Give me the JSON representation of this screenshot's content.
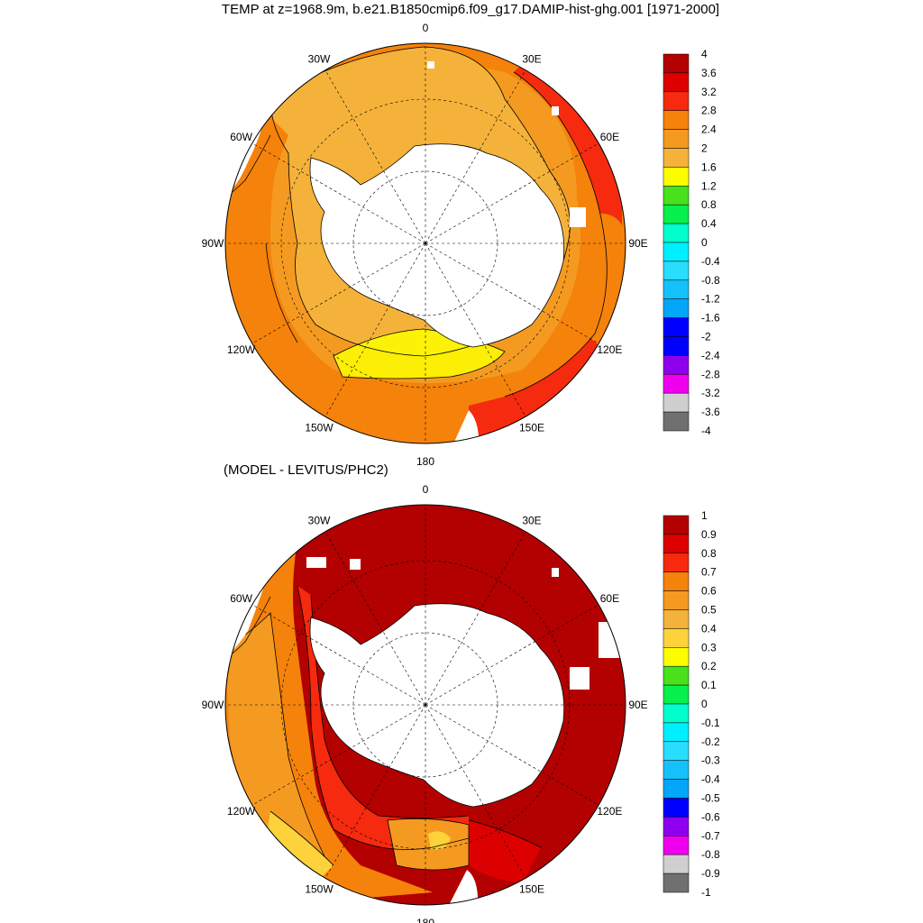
{
  "title": "TEMP at z=1968.9m, b.e21.B1850cmip6.f09_g17.DAMIP-hist-ghg.001 [1971-2000]",
  "subtitle": "(MODEL - LEVITUS/PHC2)",
  "longitude_labels": [
    "0",
    "30E",
    "60E",
    "90E",
    "120E",
    "150E",
    "180",
    "150W",
    "120W",
    "90W",
    "60W",
    "30W"
  ],
  "colors": {
    "land": "#ffffff",
    "coast": "#000000"
  },
  "panels": [
    {
      "name": "model-temperature",
      "colorbar": {
        "labels": [
          "4",
          "3.6",
          "3.2",
          "2.8",
          "2.4",
          "2",
          "1.6",
          "1.2",
          "0.8",
          "0.4",
          "0",
          "-0.4",
          "-0.8",
          "-1.2",
          "-1.6",
          "-2",
          "-2.4",
          "-2.8",
          "-3.2",
          "-3.6",
          "-4"
        ],
        "colors": [
          "#b30000",
          "#dd0000",
          "#f52a0e",
          "#f5820a",
          "#f59a20",
          "#f5b23a",
          "#fdfd00",
          "#49e01c",
          "#07f04e",
          "#00ffcc",
          "#00efff",
          "#28ddfd",
          "#15c1fb",
          "#03a6f8",
          "#0000ff",
          "#0000ff",
          "#8e00ee",
          "#ee00ee",
          "#cfcfcf",
          "#707070"
        ]
      }
    },
    {
      "name": "model-minus-levitus",
      "colorbar": {
        "labels": [
          "1",
          "0.9",
          "0.8",
          "0.7",
          "0.6",
          "0.5",
          "0.4",
          "0.3",
          "0.2",
          "0.1",
          "0",
          "-0.1",
          "-0.2",
          "-0.3",
          "-0.4",
          "-0.5",
          "-0.6",
          "-0.7",
          "-0.8",
          "-0.9",
          "-1"
        ],
        "colors": [
          "#b30000",
          "#dd0000",
          "#f52a0e",
          "#f5820a",
          "#f59a20",
          "#f5b23a",
          "#fdd23a",
          "#fdfd00",
          "#49e01c",
          "#07f04e",
          "#00ffcc",
          "#00efff",
          "#28ddfd",
          "#15c1fb",
          "#03a6f8",
          "#0000ff",
          "#8e00ee",
          "#ee00ee",
          "#cfcfcf",
          "#707070"
        ]
      }
    }
  ]
}
